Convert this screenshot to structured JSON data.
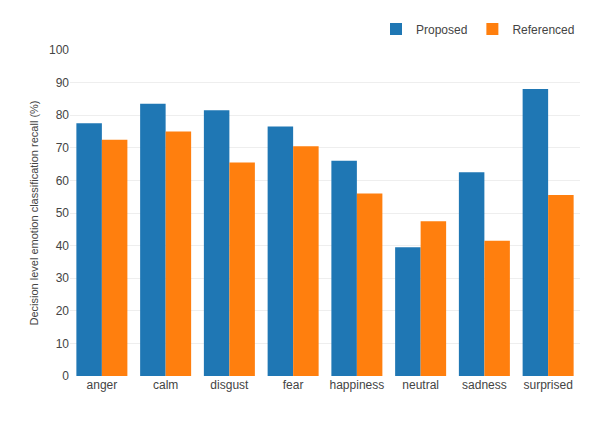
{
  "chart_data": {
    "type": "bar",
    "categories": [
      "anger",
      "calm",
      "disgust",
      "fear",
      "happiness",
      "neutral",
      "sadness",
      "surprised"
    ],
    "series": [
      {
        "name": "Proposed",
        "values": [
          77.5,
          83.5,
          81.5,
          76.5,
          66.0,
          39.5,
          62.5,
          88.0
        ]
      },
      {
        "name": "Referenced",
        "values": [
          72.5,
          75.0,
          65.5,
          70.5,
          56.0,
          47.5,
          41.5,
          55.5
        ]
      }
    ],
    "ylabel": "Decision level emotion classification recall (%)",
    "ylim": [
      0,
      100
    ],
    "yticks": [
      0,
      10,
      20,
      30,
      40,
      50,
      60,
      70,
      80,
      90,
      100
    ],
    "grid": true,
    "legend": "upper right"
  }
}
